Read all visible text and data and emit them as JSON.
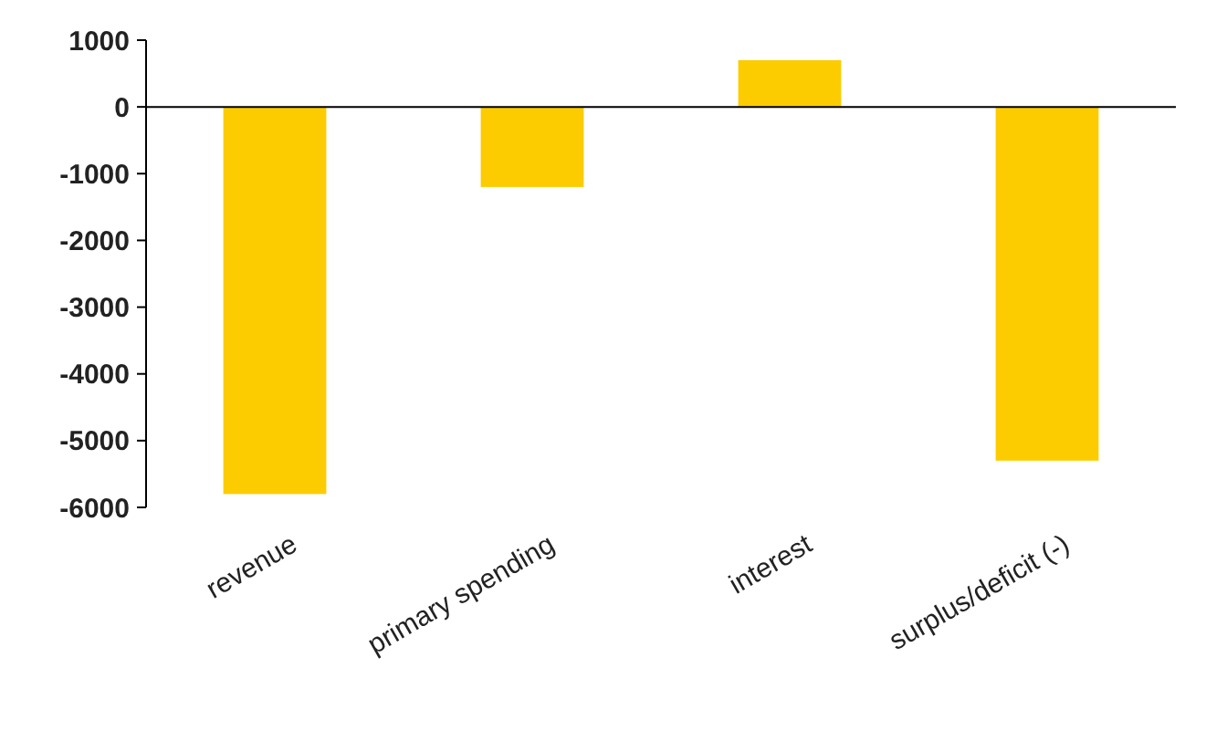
{
  "chart_data": {
    "type": "bar",
    "categories": [
      "revenue",
      "primary spending",
      "interest",
      "surplus/deficit (-)"
    ],
    "values": [
      -5800,
      -1200,
      700,
      -5300
    ],
    "color": "#fccc00",
    "ylim": [
      -6000,
      1000
    ],
    "yticks": [
      -6000,
      -5000,
      -4000,
      -3000,
      -2000,
      -1000,
      0,
      1000
    ]
  }
}
